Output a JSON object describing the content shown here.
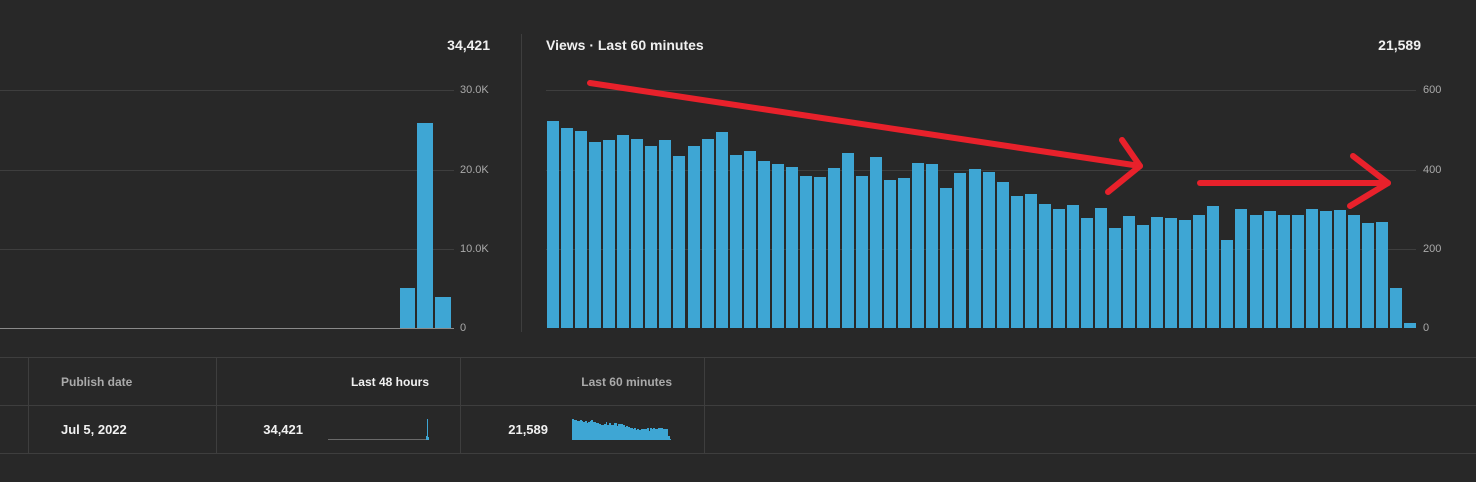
{
  "left_panel": {
    "total": "34,421",
    "ticks": [
      "30.0K",
      "20.0K",
      "10.0K",
      "0"
    ]
  },
  "right_panel": {
    "title": "Views · Last 60 minutes",
    "total": "21,589",
    "ticks": [
      "600",
      "400",
      "200",
      "0"
    ]
  },
  "table": {
    "headers": {
      "publish_date": "Publish date",
      "last_48_hours": "Last 48 hours",
      "last_60_minutes": "Last 60 minutes"
    },
    "row": {
      "publish_date": "Jul 5, 2022",
      "last_48_hours": "34,421",
      "last_60_minutes": "21,589"
    }
  },
  "colors": {
    "bar": "#3ea6d4",
    "annotation": "#e8212b",
    "background": "#282828"
  },
  "chart_data": [
    {
      "type": "bar",
      "title": "",
      "ylim": [
        0,
        30000
      ],
      "yticks": [
        0,
        10000,
        20000,
        30000
      ],
      "values": [
        0,
        0,
        0,
        0,
        0,
        0,
        0,
        0,
        0,
        0,
        0,
        0,
        0,
        0,
        0,
        0,
        0,
        0,
        0,
        0,
        0,
        0,
        5000,
        25800,
        3900
      ]
    },
    {
      "type": "bar",
      "title": "Views · Last 60 minutes",
      "ylim": [
        0,
        600
      ],
      "yticks": [
        0,
        200,
        400,
        600
      ],
      "values": [
        523,
        503,
        497,
        470,
        473,
        487,
        477,
        460,
        473,
        433,
        460,
        477,
        493,
        437,
        447,
        420,
        413,
        407,
        383,
        380,
        403,
        440,
        383,
        430,
        373,
        377,
        417,
        413,
        353,
        390,
        400,
        393,
        367,
        333,
        337,
        313,
        300,
        310,
        277,
        303,
        253,
        283,
        260,
        280,
        278,
        272,
        285,
        307,
        223,
        300,
        285,
        296,
        285,
        286,
        300,
        296,
        297,
        285,
        265,
        268,
        100,
        12
      ]
    }
  ]
}
